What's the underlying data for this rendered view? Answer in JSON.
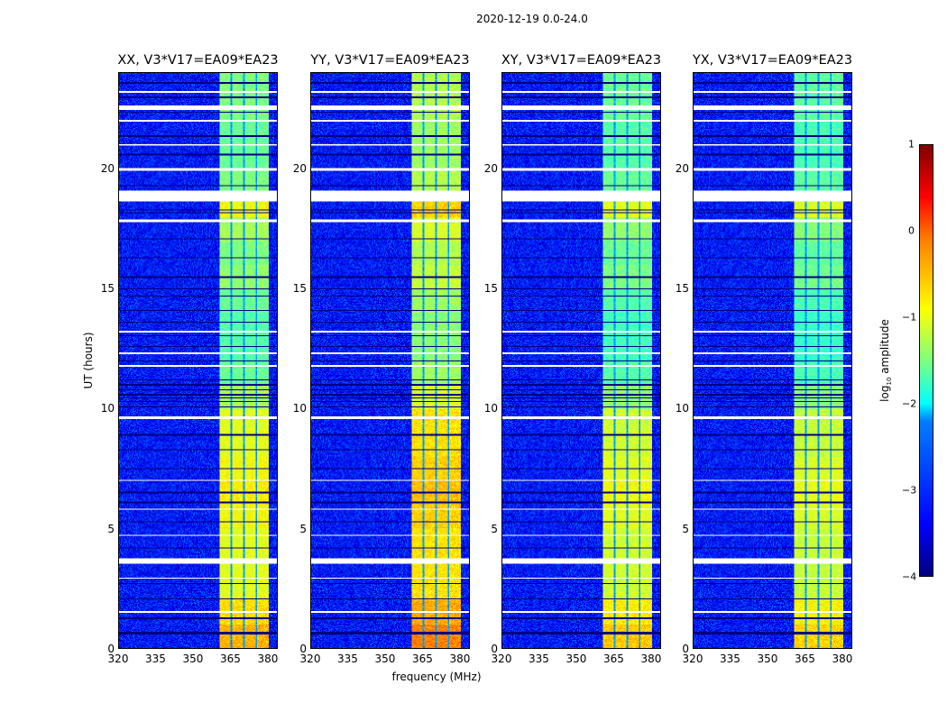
{
  "chart_data": {
    "type": "heatmap",
    "title": "2020-12-19 0.0-24.0",
    "xlabel": "frequency (MHz)",
    "ylabel": "UT (hours)",
    "xlim": [
      320,
      384
    ],
    "ylim": [
      0,
      24
    ],
    "xticks": [
      "320",
      "335",
      "350",
      "365",
      "380"
    ],
    "xtick_values": [
      320,
      335,
      350,
      365,
      380
    ],
    "yticks": [
      "0",
      "5",
      "10",
      "15",
      "20"
    ],
    "ytick_values": [
      0,
      5,
      10,
      15,
      20
    ],
    "panels": [
      {
        "title": "XX, V3*V17=EA09*EA23",
        "band_boost": 0.0
      },
      {
        "title": "YY, V3*V17=EA09*EA23",
        "band_boost": 0.25
      },
      {
        "title": "XY, V3*V17=EA09*EA23",
        "band_boost": -0.1
      },
      {
        "title": "YX, V3*V17=EA09*EA23",
        "band_boost": -0.15
      }
    ],
    "band_MHz": [
      360.5,
      380.5
    ],
    "band_gaps_MHz": [
      365.5,
      370.5,
      375.5
    ],
    "background_log_amp": -3.3,
    "band_log_amp_by_hour": [
      -0.5,
      -0.7,
      -1.0,
      -1.0,
      -1.0,
      -0.9,
      -0.8,
      -0.9,
      -1.0,
      -1.0,
      -1.3,
      -1.6,
      -1.7,
      -1.7,
      -1.6,
      -1.4,
      -1.5,
      -1.3,
      -0.9,
      -1.5,
      -1.6,
      -1.6,
      -1.5,
      -1.5
    ],
    "flagged_hours": [
      [
        0.0,
        0.02
      ],
      [
        1.5,
        1.55
      ],
      [
        2.9,
        2.95
      ],
      [
        3.55,
        3.75
      ],
      [
        4.7,
        4.75
      ],
      [
        5.8,
        5.84
      ],
      [
        7.0,
        7.03
      ],
      [
        9.6,
        9.7
      ],
      [
        11.75,
        11.85
      ],
      [
        12.3,
        12.35
      ],
      [
        13.2,
        13.25
      ],
      [
        17.8,
        17.9
      ],
      [
        18.65,
        19.1
      ],
      [
        19.95,
        20.05
      ],
      [
        21.0,
        21.07
      ],
      [
        22.0,
        22.05
      ],
      [
        22.5,
        22.65
      ],
      [
        23.2,
        23.25
      ]
    ],
    "dropout_hours": [
      0.6,
      0.65,
      1.25,
      2.05,
      2.7,
      4.2,
      5.3,
      6.1,
      6.5,
      7.5,
      8.3,
      8.9,
      10.1,
      10.3,
      10.45,
      10.6,
      10.8,
      11.0,
      11.2,
      12.0,
      12.6,
      13.05,
      13.6,
      14.1,
      14.7,
      15.0,
      15.5,
      16.3,
      17.1,
      18.2,
      18.3,
      19.3,
      20.6,
      21.4,
      22.4,
      23.0,
      23.6
    ],
    "colorbar": {
      "label_prefix": "log",
      "label_sub": "10",
      "label_suffix": " amplitude",
      "range": [
        -4,
        1
      ],
      "ticks": [
        "1",
        "0",
        "−1",
        "−2",
        "−3",
        "−4"
      ],
      "tick_values": [
        1,
        0,
        -1,
        -2,
        -3,
        -4
      ],
      "colormap": "jet"
    }
  }
}
